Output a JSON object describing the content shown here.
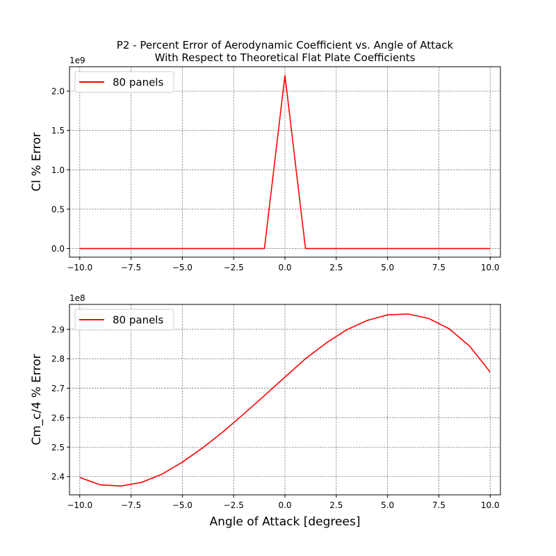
{
  "figure": {
    "title_line1": "P2 - Percent Error of Aerodynamic Coefficient vs. Angle of Attack",
    "title_line2": "With Respect to Theoretical Flat Plate Coefficients"
  },
  "chart_data": [
    {
      "type": "line",
      "title": "",
      "xlabel": "",
      "ylabel": "Cl % Error",
      "offset_label": "1e9",
      "xlim": [
        -10.5,
        10.5
      ],
      "ylim": [
        -0.11,
        2.31
      ],
      "xticks": [
        -10.0,
        -7.5,
        -5.0,
        -2.5,
        0.0,
        2.5,
        5.0,
        7.5,
        10.0
      ],
      "xtick_labels": [
        "−10.0",
        "−7.5",
        "−5.0",
        "−2.5",
        "0.0",
        "2.5",
        "5.0",
        "7.5",
        "10.0"
      ],
      "yticks": [
        0.0,
        0.5,
        1.0,
        1.5,
        2.0
      ],
      "ytick_labels": [
        "0.0",
        "0.5",
        "1.0",
        "1.5",
        "2.0"
      ],
      "grid": true,
      "legend": "upper-left",
      "series": [
        {
          "name": "80 panels",
          "color": "#ff0000",
          "x": [
            -10,
            -9,
            -8,
            -7,
            -6,
            -5,
            -4,
            -3,
            -2,
            -1,
            0,
            1,
            2,
            3,
            4,
            5,
            6,
            7,
            8,
            9,
            10
          ],
          "y": [
            0,
            0,
            0,
            0,
            0,
            0,
            0,
            0,
            0,
            0,
            2.2,
            0,
            0,
            0,
            0,
            0,
            0,
            0,
            0,
            0,
            0
          ]
        }
      ]
    },
    {
      "type": "line",
      "title": "",
      "xlabel": "Angle of Attack [degrees]",
      "ylabel": "Cm_c/4 % Error",
      "offset_label": "1e8",
      "xlim": [
        -10.5,
        10.5
      ],
      "ylim": [
        2.338,
        2.9845
      ],
      "xticks": [
        -10.0,
        -7.5,
        -5.0,
        -2.5,
        0.0,
        2.5,
        5.0,
        7.5,
        10.0
      ],
      "xtick_labels": [
        "−10.0",
        "−7.5",
        "−5.0",
        "−2.5",
        "0.0",
        "2.5",
        "5.0",
        "7.5",
        "10.0"
      ],
      "yticks": [
        2.4,
        2.5,
        2.6,
        2.7,
        2.8,
        2.9
      ],
      "ytick_labels": [
        "2.4",
        "2.5",
        "2.6",
        "2.7",
        "2.8",
        "2.9"
      ],
      "grid": true,
      "legend": "upper-left",
      "series": [
        {
          "name": "80 panels",
          "color": "#ff0000",
          "x": [
            -10,
            -9,
            -8,
            -7,
            -6,
            -5,
            -4,
            -3,
            -2,
            -1,
            0,
            1,
            2,
            3,
            4,
            5,
            6,
            7,
            8,
            9,
            10
          ],
          "y": [
            2.397,
            2.372,
            2.368,
            2.38,
            2.408,
            2.449,
            2.498,
            2.553,
            2.613,
            2.675,
            2.738,
            2.8,
            2.853,
            2.898,
            2.93,
            2.949,
            2.952,
            2.937,
            2.902,
            2.843,
            2.755
          ]
        }
      ]
    }
  ]
}
